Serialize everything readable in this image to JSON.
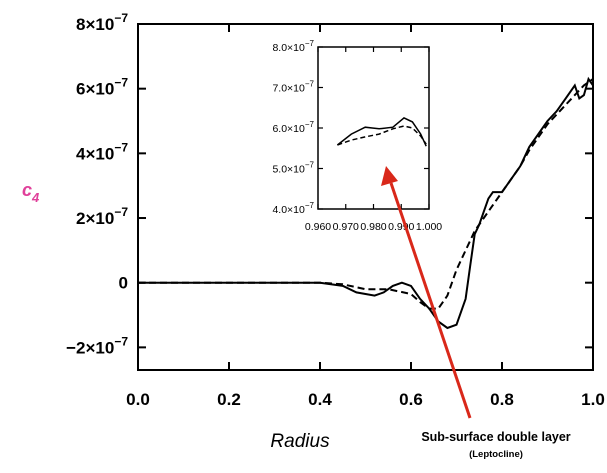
{
  "chart_data": [
    {
      "id": "main",
      "type": "line",
      "xlabel": "Radius",
      "ylabel": "c",
      "ylabel_subscript": "4",
      "xlim": [
        0.0,
        1.0
      ],
      "ylim": [
        -2.7e-07,
        8e-07
      ],
      "x_ticks": [
        0.0,
        0.2,
        0.4,
        0.6,
        0.8,
        1.0
      ],
      "x_tick_labels": [
        "0.0",
        "0.2",
        "0.4",
        "0.6",
        "0.8",
        "1.0"
      ],
      "y_ticks": [
        -2e-07,
        0,
        2e-07,
        4e-07,
        6e-07,
        8e-07
      ],
      "y_tick_labels": [
        {
          "mantissa": "−2×10",
          "exp": "−7"
        },
        {
          "mantissa": "0",
          "exp": ""
        },
        {
          "mantissa": "2×10",
          "exp": "−7"
        },
        {
          "mantissa": "4×10",
          "exp": "−7"
        },
        {
          "mantissa": "6×10",
          "exp": "−7"
        },
        {
          "mantissa": "8×10",
          "exp": "−7"
        }
      ],
      "grid": false,
      "series": [
        {
          "style": "solid",
          "x": [
            0.0,
            0.1,
            0.2,
            0.3,
            0.4,
            0.45,
            0.48,
            0.5,
            0.52,
            0.54,
            0.56,
            0.58,
            0.6,
            0.62,
            0.64,
            0.66,
            0.68,
            0.7,
            0.72,
            0.73,
            0.74,
            0.75,
            0.76,
            0.77,
            0.78,
            0.8,
            0.82,
            0.84,
            0.86,
            0.88,
            0.9,
            0.92,
            0.94,
            0.96,
            0.97,
            0.98,
            0.99,
            1.0
          ],
          "y": [
            0.0,
            0.0,
            0.0,
            0.0,
            0.0,
            -1e-08,
            -3e-08,
            -3.5e-08,
            -4e-08,
            -3e-08,
            -1e-08,
            0.0,
            -1e-08,
            -5e-08,
            -8e-08,
            -1.2e-07,
            -1.4e-07,
            -1.3e-07,
            -5e-08,
            5e-08,
            1.5e-07,
            1.8e-07,
            2.2e-07,
            2.6e-07,
            2.8e-07,
            2.8e-07,
            3.2e-07,
            3.6e-07,
            4.2e-07,
            4.6e-07,
            5e-07,
            5.3e-07,
            5.7e-07,
            6.1e-07,
            5.7e-07,
            5.8e-07,
            6.3e-07,
            6.1e-07
          ]
        },
        {
          "style": "dashed",
          "x": [
            0.0,
            0.1,
            0.2,
            0.3,
            0.4,
            0.45,
            0.5,
            0.55,
            0.6,
            0.62,
            0.64,
            0.66,
            0.68,
            0.7,
            0.72,
            0.74,
            0.76,
            0.78,
            0.8,
            0.82,
            0.84,
            0.86,
            0.88,
            0.9,
            0.92,
            0.94,
            0.96,
            0.98,
            1.0
          ],
          "y": [
            0.0,
            0.0,
            0.0,
            0.0,
            0.0,
            -5e-09,
            -2e-08,
            -2e-08,
            -3.5e-08,
            -6e-08,
            -8e-08,
            -8e-08,
            -4e-08,
            4e-08,
            1e-07,
            1.6e-07,
            2e-07,
            2.4e-07,
            2.8e-07,
            3.2e-07,
            3.6e-07,
            4.1e-07,
            4.5e-07,
            4.9e-07,
            5.2e-07,
            5.5e-07,
            5.8e-07,
            6.1e-07,
            6.3e-07
          ]
        }
      ]
    },
    {
      "id": "inset",
      "type": "line",
      "xlim": [
        0.96,
        1.0
      ],
      "ylim": [
        4e-07,
        8e-07
      ],
      "x_ticks": [
        0.96,
        0.97,
        0.98,
        0.99,
        1.0
      ],
      "x_tick_labels": [
        "0.960",
        "0.970",
        "0.980",
        "0.990",
        "1.000"
      ],
      "y_ticks": [
        4e-07,
        5e-07,
        6e-07,
        7e-07,
        8e-07
      ],
      "y_tick_labels": [
        {
          "mantissa": "4.0×10",
          "exp": "−7"
        },
        {
          "mantissa": "5.0×10",
          "exp": "−7"
        },
        {
          "mantissa": "6.0×10",
          "exp": "−7"
        },
        {
          "mantissa": "7.0×10",
          "exp": "−7"
        },
        {
          "mantissa": "8.0×10",
          "exp": "−7"
        }
      ],
      "grid": false,
      "series": [
        {
          "style": "solid",
          "x": [
            0.967,
            0.972,
            0.977,
            0.982,
            0.987,
            0.991,
            0.994,
            0.997,
            0.999
          ],
          "y": [
            5.58e-07,
            5.85e-07,
            6.02e-07,
            5.98e-07,
            6.02e-07,
            6.25e-07,
            6.15e-07,
            5.85e-07,
            5.55e-07
          ]
        },
        {
          "style": "dashed",
          "x": [
            0.967,
            0.972,
            0.977,
            0.982,
            0.987,
            0.991,
            0.994,
            0.997,
            0.999
          ],
          "y": [
            5.58e-07,
            5.7e-07,
            5.78e-07,
            5.85e-07,
            5.98e-07,
            6.05e-07,
            6e-07,
            5.8e-07,
            5.6e-07
          ]
        }
      ]
    }
  ],
  "annotation": {
    "text": "Sub-surface double layer",
    "subtext": "(Leptocline)",
    "arrow_color": "#d9281a"
  }
}
